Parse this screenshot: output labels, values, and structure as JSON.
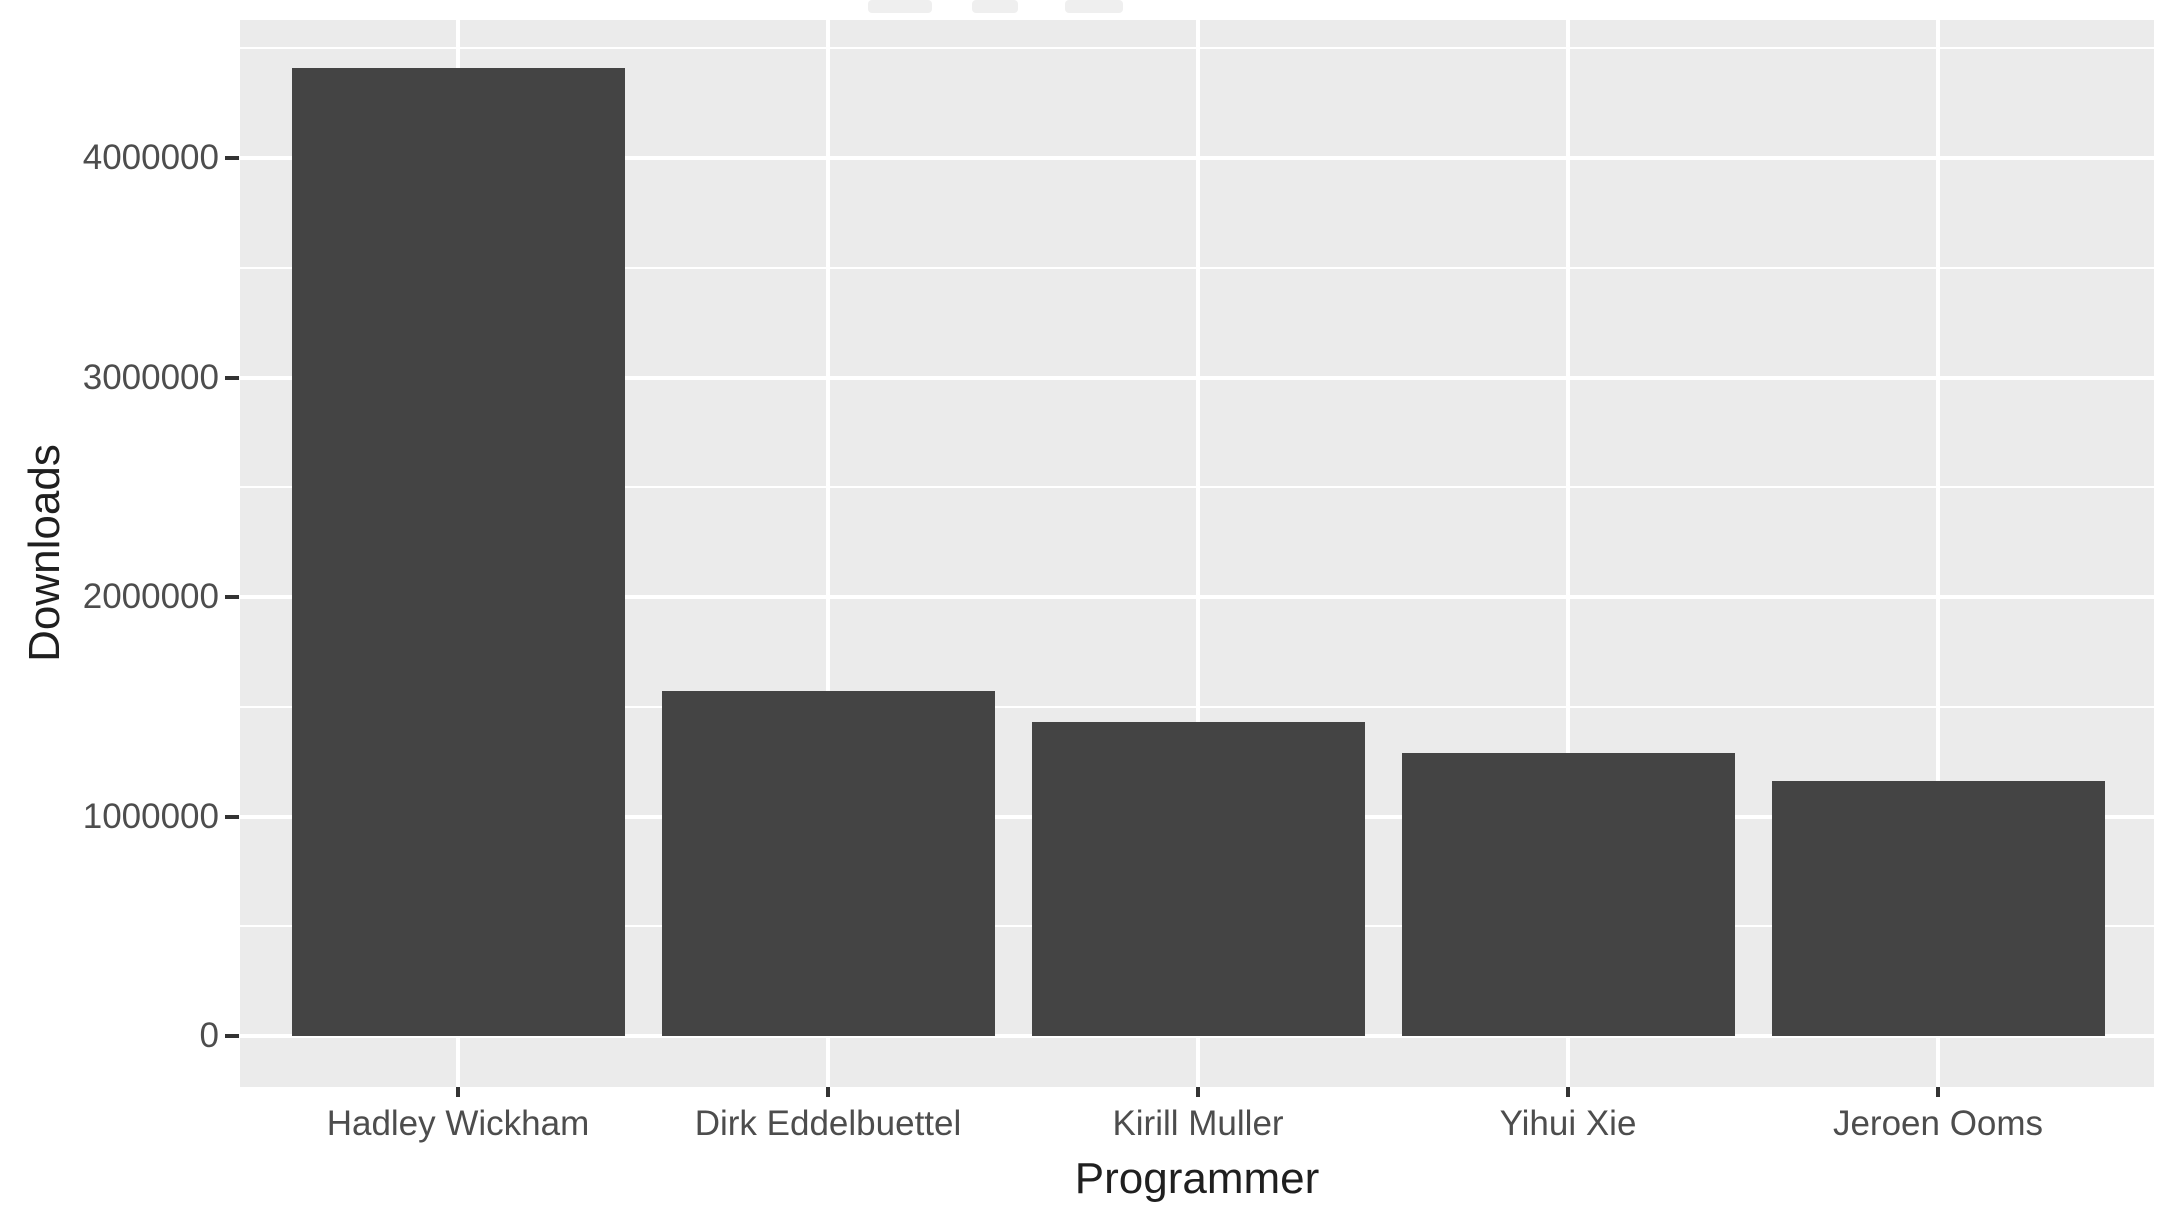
{
  "chart_data": {
    "type": "bar",
    "title": "",
    "categories": [
      "Hadley Wickham",
      "Dirk Eddelbuettel",
      "Kirill Muller",
      "Yihui Xie",
      "Jeroen Ooms"
    ],
    "values": [
      4410000,
      1570000,
      1430000,
      1290000,
      1160000
    ],
    "xlabel": "Programmer",
    "ylabel": "Downloads",
    "ytick_values": [
      0,
      1000000,
      2000000,
      3000000,
      4000000
    ],
    "ytick_labels": [
      "0",
      "1000000",
      "2000000",
      "3000000",
      "4000000"
    ],
    "minor_gridline_values": [
      500000,
      1500000,
      2500000,
      3500000,
      4500000
    ],
    "ylim": [
      -230000,
      4630000
    ],
    "grid": "major and minor horizontal gridlines, major vertical gridline at each category center",
    "legend_position": "none",
    "style": "ggplot2 gray theme"
  },
  "colors": {
    "background": "#ffffff",
    "panel_background": "#ebebeb",
    "gridline": "#ffffff",
    "bar_fill": "#444444",
    "tick_label_text": "#4d4d4d",
    "axis_title_text": "#1f1f1f",
    "tick_mark": "#333333",
    "title_remnant": "#efefef"
  }
}
